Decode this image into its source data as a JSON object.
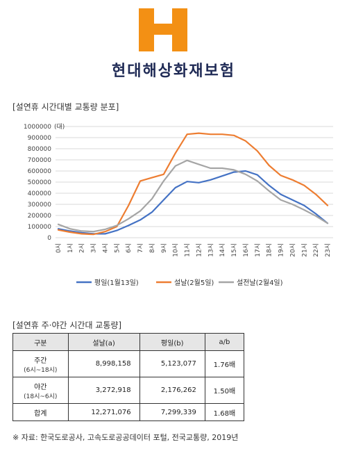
{
  "header": {
    "brand_name": "현대해상화재보험",
    "logo_color": "#f39014",
    "brand_color": "#1f2a55"
  },
  "chart_section": {
    "title": "[설연휴 시간대별 교통량 분포]"
  },
  "chart_data": {
    "type": "line",
    "title": "",
    "ylabel": "(대)",
    "ylim": [
      0,
      1000000
    ],
    "yticks": [
      "0",
      "100000",
      "200000",
      "300000",
      "400000",
      "500000",
      "600000",
      "700000",
      "800000",
      "900000",
      "1000000"
    ],
    "categories": [
      "0시",
      "1시",
      "2시",
      "3시",
      "4시",
      "5시",
      "6시",
      "7시",
      "8시",
      "9시",
      "10시",
      "11시",
      "12시",
      "13시",
      "14시",
      "15시",
      "16시",
      "17시",
      "18시",
      "19시",
      "20시",
      "21시",
      "22시",
      "23시"
    ],
    "legend_position": "bottom",
    "series": [
      {
        "name": "평일(1월13일)",
        "color": "#4472c4",
        "values": [
          80000,
          60000,
          45000,
          35000,
          35000,
          65000,
          110000,
          160000,
          230000,
          340000,
          450000,
          505000,
          495000,
          520000,
          555000,
          590000,
          600000,
          565000,
          470000,
          390000,
          340000,
          290000,
          215000,
          130000
        ]
      },
      {
        "name": "설날(2월5일)",
        "color": "#ed7d31",
        "values": [
          70000,
          50000,
          35000,
          30000,
          55000,
          100000,
          290000,
          510000,
          540000,
          570000,
          760000,
          930000,
          940000,
          930000,
          930000,
          920000,
          870000,
          780000,
          650000,
          560000,
          520000,
          470000,
          390000,
          290000
        ]
      },
      {
        "name": "설전날(2월4일)",
        "color": "#a5a5a5",
        "values": [
          120000,
          80000,
          60000,
          55000,
          75000,
          110000,
          170000,
          240000,
          350000,
          510000,
          645000,
          695000,
          660000,
          625000,
          625000,
          610000,
          570000,
          510000,
          420000,
          340000,
          300000,
          250000,
          195000,
          130000
        ]
      }
    ]
  },
  "table_section": {
    "title": "[설연휴 주·야간 시간대 교통량]",
    "headers": [
      "구분",
      "설날(a)",
      "평일(b)",
      "a/b"
    ],
    "rows": [
      {
        "label": "주간",
        "sub": "(6시~18시)",
        "a": "8,998,158",
        "b": "5,123,077",
        "ratio": "1.76배"
      },
      {
        "label": "야간",
        "sub": "(18시~6시)",
        "a": "3,272,918",
        "b": "2,176,262",
        "ratio": "1.50배"
      },
      {
        "label": "합계",
        "sub": "",
        "a": "12,271,076",
        "b": "7,299,339",
        "ratio": "1.68배"
      }
    ]
  },
  "source": "※ 자료: 한국도로공사, 고속도로공공데이터 포털, 전국교통량, 2019년"
}
